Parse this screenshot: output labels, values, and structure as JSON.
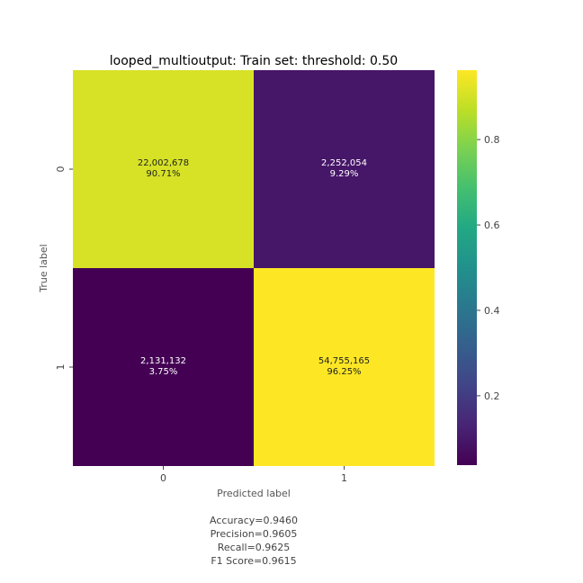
{
  "chart_data": {
    "type": "heatmap",
    "title": "looped_multioutput: Train set: threshold: 0.50",
    "xlabel": "Predicted label",
    "ylabel": "True label",
    "x_ticks": [
      "0",
      "1"
    ],
    "y_ticks": [
      "0",
      "1"
    ],
    "cells": [
      [
        {
          "count": "22,002,678",
          "pct": "90.71%",
          "value": 0.9071
        },
        {
          "count": "2,252,054",
          "pct": "9.29%",
          "value": 0.0929
        }
      ],
      [
        {
          "count": "2,131,132",
          "pct": "3.75%",
          "value": 0.0375
        },
        {
          "count": "54,755,165",
          "pct": "96.25%",
          "value": 0.9625
        }
      ]
    ],
    "colorbar": {
      "colormap": "viridis",
      "range": [
        0.0375,
        0.9625
      ],
      "ticks": [
        0.2,
        0.4,
        0.6,
        0.8
      ],
      "tick_labels": [
        "0.2",
        "0.4",
        "0.6",
        "0.8"
      ]
    },
    "metrics": [
      "Accuracy=0.9460",
      "Precision=0.9605",
      "Recall=0.9625",
      "F1 Score=0.9615"
    ]
  }
}
